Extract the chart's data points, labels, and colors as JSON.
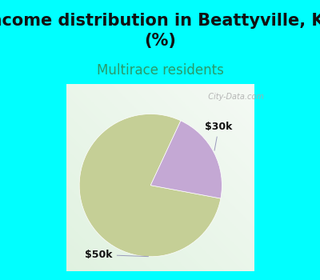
{
  "title": "Income distribution in Beattyville, KY\n(%)",
  "subtitle": "Multirace residents",
  "title_fontsize": 15,
  "subtitle_fontsize": 12,
  "title_color": "#111111",
  "subtitle_color": "#2a9a6a",
  "background_color": "#00ffff",
  "chart_bg_top_right": "#e8f4f0",
  "chart_bg_bottom_left": "#d0eedd",
  "slices": [
    {
      "label": "$50k",
      "value": 79,
      "color": "#c5cf96"
    },
    {
      "label": "$30k",
      "value": 21,
      "color": "#c4a8d4"
    }
  ],
  "watermark": "City-Data.com",
  "label_fontsize": 9,
  "startangle": 65
}
